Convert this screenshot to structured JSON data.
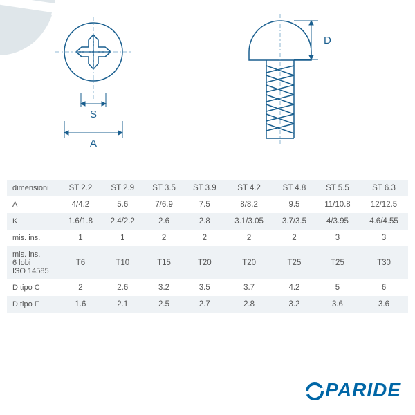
{
  "diagram": {
    "label_A": "A",
    "label_S": "S",
    "label_D": "D",
    "stroke": "#1a5f8f",
    "stroke_light": "#6fa3c7",
    "watermark_fill": "#dfe6ea"
  },
  "table": {
    "header_bg": "#eef2f5",
    "text_color": "#555555",
    "columns": [
      "ST 2.2",
      "ST 2.9",
      "ST 3.5",
      "ST 3.9",
      "ST 4.2",
      "ST 4.8",
      "ST 5.5",
      "ST 6.3"
    ],
    "rows": [
      {
        "label": "dimensioni",
        "cells": [
          "ST 2.2",
          "ST 2.9",
          "ST 3.5",
          "ST 3.9",
          "ST 4.2",
          "ST 4.8",
          "ST 5.5",
          "ST 6.3"
        ],
        "alt": true
      },
      {
        "label": "A",
        "cells": [
          "4/4.2",
          "5.6",
          "7/6.9",
          "7.5",
          "8/8.2",
          "9.5",
          "11/10.8",
          "12/12.5"
        ],
        "alt": false
      },
      {
        "label": "K",
        "cells": [
          "1.6/1.8",
          "2.4/2.2",
          "2.6",
          "2.8",
          "3.1/3.05",
          "3.7/3.5",
          "4/3.95",
          "4.6/4.55"
        ],
        "alt": true
      },
      {
        "label": "mis. ins.",
        "cells": [
          "1",
          "1",
          "2",
          "2",
          "2",
          "2",
          "3",
          "3"
        ],
        "alt": false
      },
      {
        "label": "mis. ins.\n6 lobi\nISO 14585",
        "cells": [
          "T6",
          "T10",
          "T15",
          "T20",
          "T20",
          "T25",
          "T25",
          "T30"
        ],
        "alt": true
      },
      {
        "label": "D tipo C",
        "cells": [
          "2",
          "2.6",
          "3.2",
          "3.5",
          "3.7",
          "4.2",
          "5",
          "6"
        ],
        "alt": false
      },
      {
        "label": "D tipo F",
        "cells": [
          "1.6",
          "2.1",
          "2.5",
          "2.7",
          "2.8",
          "3.2",
          "3.6",
          "3.6"
        ],
        "alt": true
      }
    ]
  },
  "logo": {
    "text": "PARIDE",
    "color": "#0066a6"
  }
}
